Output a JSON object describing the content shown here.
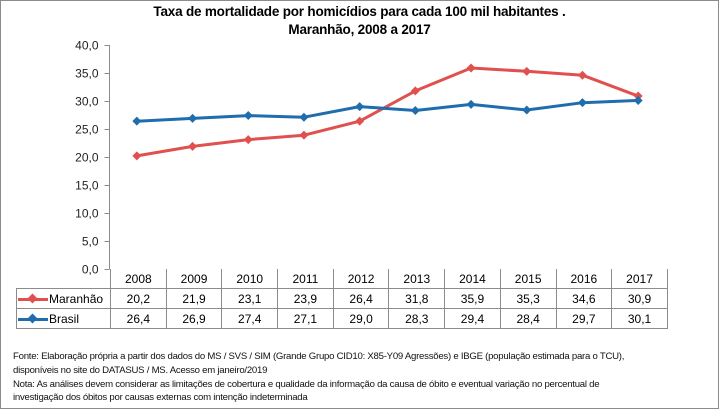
{
  "chart_data": {
    "type": "line",
    "title": "Taxa de mortalidade por homicídios para cada 100 mil habitantes .",
    "subtitle": "Maranhão, 2008 a 2017",
    "xlabel": "",
    "ylabel": "",
    "categories": [
      "2008",
      "2009",
      "2010",
      "2011",
      "2012",
      "2013",
      "2014",
      "2015",
      "2016",
      "2017"
    ],
    "ylim": [
      0,
      40
    ],
    "yticks": [
      "0,0",
      "5,0",
      "10,0",
      "15,0",
      "20,0",
      "25,0",
      "30,0",
      "35,0",
      "40,0"
    ],
    "ytick_values": [
      0,
      5,
      10,
      15,
      20,
      25,
      30,
      35,
      40
    ],
    "grid": false,
    "legend": "data-table-left",
    "data_table": true,
    "series": [
      {
        "name": "Maranhão",
        "color": "#e0504f",
        "marker": "diamond",
        "values": [
          20.2,
          21.9,
          23.1,
          23.9,
          26.4,
          31.8,
          35.9,
          35.3,
          34.6,
          30.9
        ],
        "labels": [
          "20,2",
          "21,9",
          "23,1",
          "23,9",
          "26,4",
          "31,8",
          "35,9",
          "35,3",
          "34,6",
          "30,9"
        ]
      },
      {
        "name": "Brasil",
        "color": "#1f6dac",
        "marker": "diamond",
        "values": [
          26.4,
          26.9,
          27.4,
          27.1,
          29.0,
          28.3,
          29.4,
          28.4,
          29.7,
          30.1
        ],
        "labels": [
          "26,4",
          "26,9",
          "27,4",
          "27,1",
          "29,0",
          "28,3",
          "29,4",
          "28,4",
          "29,7",
          "30,1"
        ]
      }
    ]
  },
  "notes": {
    "line1": "Fonte: Elaboração própria a partir dos dados do MS / SVS / SIM (Grande Grupo CID10: X85-Y09 Agressões) e IBGE (população estimada para o TCU),",
    "line2": "disponíveis no site do DATASUS / MS. Acesso em janeiro/2019",
    "line3": "Nota:  As análises devem considerar as limitações de cobertura e qualidade da informação da causa de óbito e eventual variação no percentual de",
    "line4": "investigação dos óbitos por causas externas com intenção  indeterminada"
  }
}
